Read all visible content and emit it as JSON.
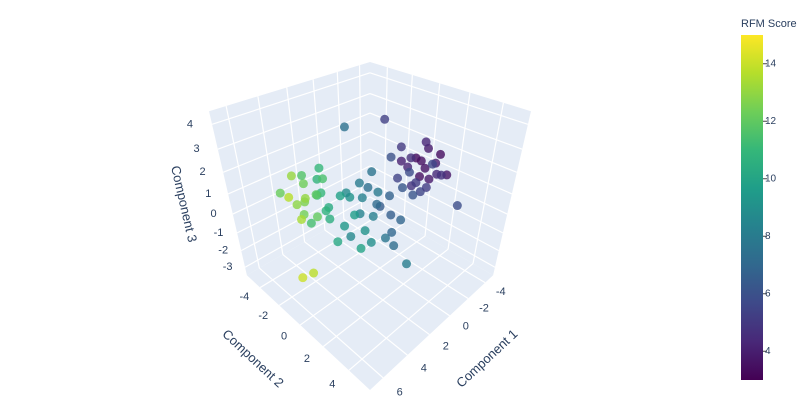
{
  "chart_data": {
    "type": "scatter3d",
    "x_title": "Component 1",
    "y_title": "Component 2",
    "z_title": "Component 3",
    "xlim": [
      -5,
      7
    ],
    "xticks": [
      -4,
      -2,
      0,
      2,
      4,
      6
    ],
    "ylim": [
      -5.5,
      5.5
    ],
    "yticks": [
      -4,
      -2,
      0,
      2,
      4
    ],
    "zlim": [
      -3.5,
      4.5
    ],
    "zticks": [
      -3,
      -2,
      -1,
      0,
      1,
      2,
      3,
      4
    ],
    "grid": true,
    "pane_color": "#e5ecf6",
    "colorbar_title": "RFM Score",
    "colorbar_range": [
      3,
      15
    ],
    "colorbar_ticks": [
      4,
      6,
      8,
      10,
      12,
      14
    ],
    "colorscale": [
      "#440154",
      "#482878",
      "#3e4989",
      "#31688e",
      "#26828e",
      "#1f9e89",
      "#35b779",
      "#6ece58",
      "#b5de2b",
      "#fde725"
    ],
    "x": [
      -3.2,
      -2.8,
      -3.6,
      -2.4,
      -3.9,
      -2.1,
      -3.4,
      -2.6,
      -4.1,
      -3.0,
      -2.2,
      -3.7,
      -1.8,
      -2.9,
      -4.3,
      -3.3,
      -2.5,
      -3.8,
      -2.0,
      -3.1,
      -1.6,
      -4.0,
      -2.7,
      -3.5,
      -2.3,
      -0.5,
      0.3,
      -1.0,
      0.8,
      -0.2,
      1.2,
      -1.4,
      0.0,
      0.6,
      -0.8,
      1.5,
      -1.2,
      0.2,
      0.9,
      -0.4,
      -1.6,
      1.8,
      0.4,
      -0.9,
      1.1,
      -0.1,
      0.7,
      -1.8,
      1.4,
      -0.6,
      2.4,
      3.0,
      1.9,
      2.8,
      3.4,
      2.1,
      3.7,
      2.6,
      1.7,
      3.2,
      2.9,
      4.0,
      2.3,
      1.5,
      3.5,
      2.0,
      3.1,
      2.7,
      4.3,
      2.2,
      4.5,
      5.0,
      -1.0,
      -4.5,
      0.5,
      3.8,
      -2.5,
      1.0
    ],
    "y": [
      0.4,
      -0.3,
      0.8,
      0.2,
      -0.5,
      0.9,
      1.3,
      -0.9,
      0.1,
      1.7,
      -0.4,
      0.5,
      0.6,
      0.0,
      1.0,
      -1.2,
      1.4,
      1.9,
      -1.0,
      0.7,
      1.1,
      -0.2,
      2.2,
      0.3,
      1.8,
      -0.8,
      -1.5,
      -0.2,
      -0.6,
      -2.0,
      -1.1,
      -1.3,
      0.4,
      -2.4,
      0.9,
      -0.3,
      -2.2,
      -0.1,
      -1.8,
      -1.0,
      0.3,
      -1.4,
      1.2,
      -1.6,
      0.2,
      -2.8,
      -0.9,
      -0.7,
      -2.1,
      0.6,
      -3.1,
      -2.5,
      -3.6,
      -3.9,
      -3.0,
      -2.4,
      -3.5,
      -4.2,
      -2.9,
      -2.2,
      -3.3,
      -2.8,
      -4.5,
      -3.8,
      -4.0,
      -3.2,
      -3.7,
      -2.0,
      -3.4,
      -2.7,
      -1.5,
      -2.0,
      -4.0,
      2.5,
      2.5,
      -5.0,
      -2.0,
      -3.0
    ],
    "z": [
      1.5,
      1.1,
      0.6,
      1.8,
      1.2,
      0.9,
      1.6,
      0.4,
      0.8,
      1.3,
      2.2,
      2.0,
      1.4,
      0.2,
      1.7,
      1.0,
      0.7,
      1.1,
      1.6,
      2.5,
      0.5,
      0.3,
      1.5,
      -0.2,
      2.0,
      -0.3,
      -0.8,
      0.2,
      -1.2,
      0.5,
      -0.4,
      -0.9,
      -1.5,
      0.1,
      -0.6,
      -1.8,
      -0.1,
      0.8,
      -2.0,
      -1.0,
      0.6,
      -0.9,
      -0.7,
      1.0,
      -1.4,
      -0.5,
      0.4,
      -1.3,
      0.3,
      -2.1,
      0.3,
      -0.4,
      0.8,
      -0.2,
      0.5,
      -0.8,
      0.1,
      1.0,
      -0.5,
      0.9,
      -1.1,
      -0.3,
      0.4,
      -0.1,
      1.3,
      1.5,
      -0.7,
      0.0,
      0.7,
      1.2,
      -2.5,
      -2.8,
      2.5,
      -0.5,
      -1.8,
      0.2,
      3.0,
      -2.8
    ],
    "color_values": [
      3.5,
      4.2,
      3.8,
      4.6,
      3.3,
      5.1,
      4.0,
      5.4,
      3.6,
      4.4,
      5.0,
      3.9,
      5.8,
      4.8,
      3.4,
      4.1,
      5.2,
      3.7,
      6.0,
      4.3,
      6.2,
      3.5,
      4.7,
      5.5,
      5.6,
      7.2,
      8.4,
      6.8,
      9.1,
      8.0,
      9.6,
      6.5,
      7.7,
      8.8,
      6.9,
      9.9,
      7.4,
      7.9,
      8.6,
      8.2,
      6.3,
      9.4,
      7.0,
      7.6,
      8.9,
      9.2,
      8.3,
      6.6,
      9.8,
      7.3,
      11.2,
      12.1,
      10.8,
      12.6,
      13.0,
      10.5,
      12.9,
      11.7,
      10.3,
      11.9,
      11.4,
      13.4,
      12.3,
      10.9,
      13.1,
      11.0,
      12.4,
      10.7,
      13.7,
      11.5,
      13.8,
      14.1,
      7.5,
      5.9,
      8.1,
      12.2,
      5.3,
      10.2
    ]
  }
}
